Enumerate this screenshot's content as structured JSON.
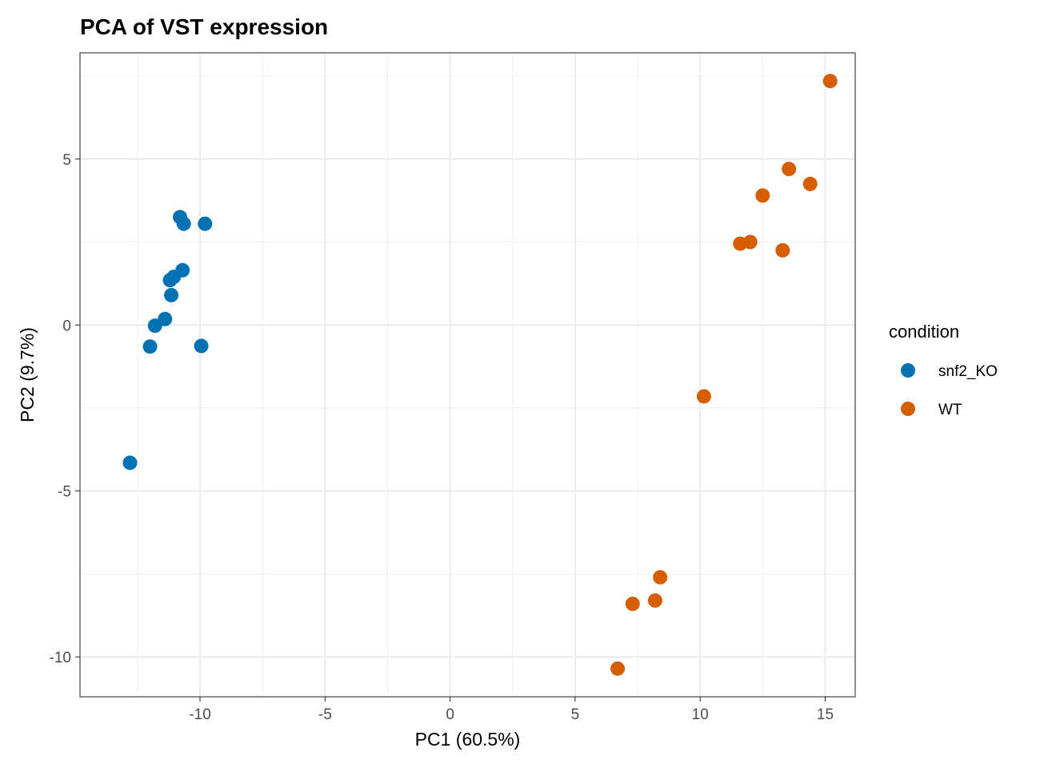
{
  "chart_data": {
    "type": "scatter",
    "title": "PCA of VST expression",
    "xlabel": "PC1 (60.5%)",
    "ylabel": "PC2 (9.7%)",
    "xlim": [
      -14.8,
      16.2
    ],
    "ylim": [
      -11.2,
      8.2
    ],
    "xticks": [
      -10,
      -5,
      0,
      5,
      10,
      15
    ],
    "xtick_labels": [
      "-10",
      "-5",
      "0",
      "5",
      "10",
      "15"
    ],
    "yticks": [
      -10,
      -5,
      0,
      5
    ],
    "ytick_labels": [
      "-10",
      "-5",
      "0",
      "5"
    ],
    "grid": true,
    "legend": {
      "title": "condition",
      "placement": "right"
    },
    "series": [
      {
        "name": "snf2_KO",
        "color": "#0072B2",
        "points": [
          [
            -12.8,
            -4.15
          ],
          [
            -12.0,
            -0.65
          ],
          [
            -11.8,
            -0.02
          ],
          [
            -11.4,
            0.18
          ],
          [
            -11.15,
            0.9
          ],
          [
            -11.2,
            1.35
          ],
          [
            -11.05,
            1.45
          ],
          [
            -10.7,
            1.65
          ],
          [
            -10.8,
            3.25
          ],
          [
            -10.65,
            3.05
          ],
          [
            -9.8,
            3.05
          ],
          [
            -9.95,
            -0.63
          ]
        ]
      },
      {
        "name": "WT",
        "color": "#D55E00",
        "points": [
          [
            15.2,
            7.35
          ],
          [
            13.55,
            4.7
          ],
          [
            14.4,
            4.25
          ],
          [
            12.5,
            3.9
          ],
          [
            11.6,
            2.45
          ],
          [
            12.0,
            2.5
          ],
          [
            13.3,
            2.25
          ],
          [
            10.15,
            -2.15
          ],
          [
            8.4,
            -7.6
          ],
          [
            8.2,
            -8.3
          ],
          [
            7.3,
            -8.4
          ],
          [
            6.7,
            -10.35
          ]
        ]
      }
    ]
  }
}
